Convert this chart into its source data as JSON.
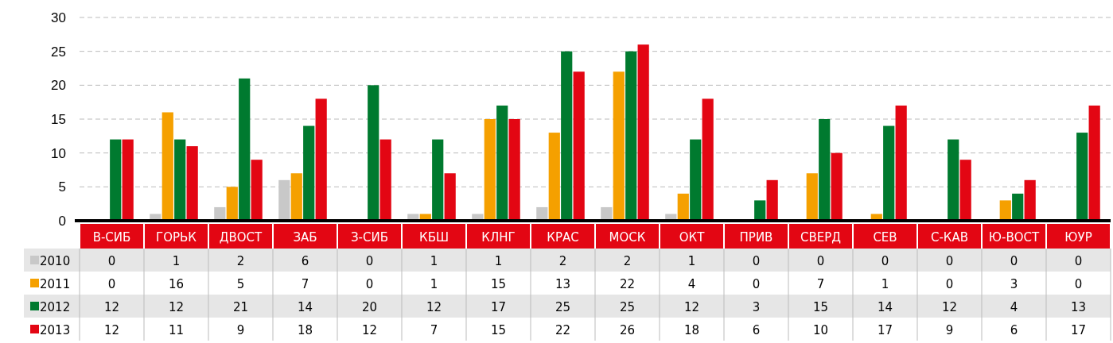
{
  "chart_data": {
    "type": "bar",
    "categories": [
      "В-СИБ",
      "ГОРЬК",
      "ДВОСТ",
      "ЗАБ",
      "З-СИБ",
      "КБШ",
      "КЛНГ",
      "КРАС",
      "МОСК",
      "ОКТ",
      "ПРИВ",
      "СВЕРД",
      "СЕВ",
      "С-КАВ",
      "Ю-ВОСТ",
      "ЮУР"
    ],
    "series": [
      {
        "name": "2010",
        "color": "#c8c8c8",
        "values": [
          0,
          1,
          2,
          6,
          0,
          1,
          1,
          2,
          2,
          1,
          0,
          0,
          0,
          0,
          0,
          0
        ]
      },
      {
        "name": "2011",
        "color": "#f5a000",
        "values": [
          0,
          16,
          5,
          7,
          0,
          1,
          15,
          13,
          22,
          4,
          0,
          7,
          1,
          0,
          3,
          0
        ]
      },
      {
        "name": "2012",
        "color": "#007a2f",
        "values": [
          12,
          12,
          21,
          14,
          20,
          12,
          17,
          25,
          25,
          12,
          3,
          15,
          14,
          12,
          4,
          13
        ]
      },
      {
        "name": "2013",
        "color": "#e30613",
        "values": [
          12,
          11,
          9,
          18,
          12,
          7,
          15,
          22,
          26,
          18,
          6,
          10,
          17,
          9,
          6,
          17
        ]
      }
    ],
    "ylim": [
      0,
      30
    ],
    "yticks": [
      0,
      5,
      10,
      15,
      20,
      25,
      30
    ],
    "grid": "y",
    "legend": "bottom left",
    "data_labels": true
  }
}
